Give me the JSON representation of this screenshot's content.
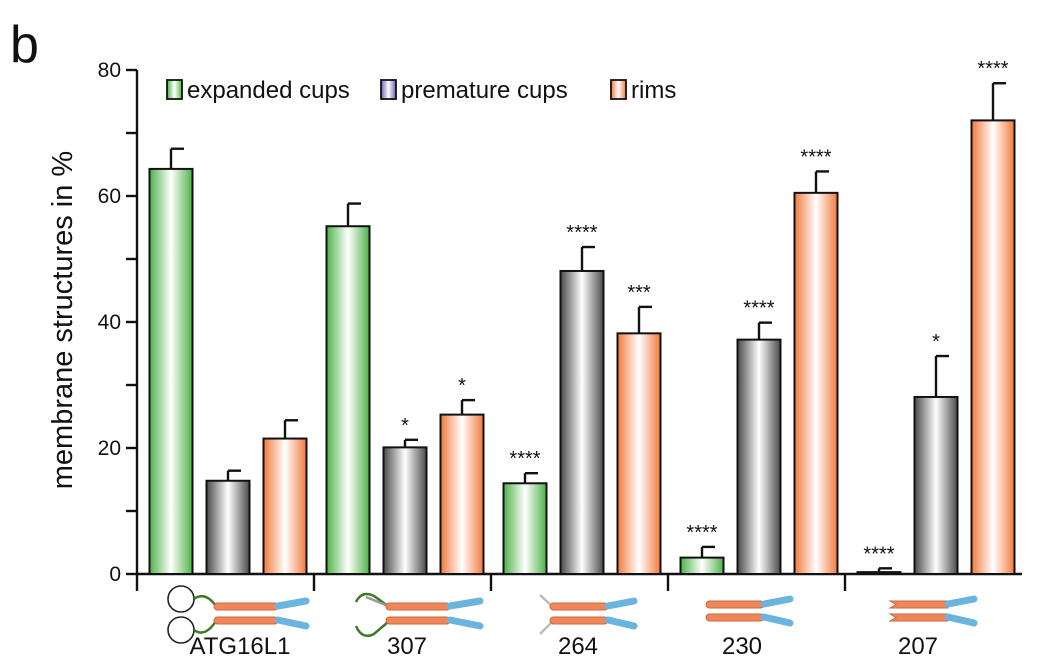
{
  "panel_label": "b",
  "chart_data": {
    "type": "bar",
    "title": "",
    "xlabel": "",
    "ylabel": "membrane structures in %",
    "ylim": [
      0,
      80
    ],
    "yticks": [
      0,
      20,
      40,
      60,
      80
    ],
    "grid": false,
    "legend_position": "top-left",
    "categories": [
      "ATG16L1",
      "307",
      "264",
      "230",
      "207"
    ],
    "series": [
      {
        "name": "expanded cups",
        "color": "#5cb85c",
        "values": [
          64.3,
          55.2,
          14.4,
          2.6,
          0.3
        ],
        "errors": [
          3.2,
          3.6,
          1.6,
          1.7,
          0.6
        ],
        "significance": [
          "",
          "",
          "****",
          "****",
          "****"
        ]
      },
      {
        "name": "premature cups",
        "color": "#7a6fb5",
        "bar_color": "#555555",
        "values": [
          14.8,
          20.1,
          48.1,
          37.2,
          28.1
        ],
        "errors": [
          1.6,
          1.2,
          3.8,
          2.7,
          6.5
        ],
        "significance": [
          "",
          "*",
          "****",
          "****",
          "*"
        ]
      },
      {
        "name": "rims",
        "color": "#f4874f",
        "values": [
          21.5,
          25.3,
          38.2,
          60.5,
          72.0
        ],
        "errors": [
          2.9,
          2.3,
          4.2,
          3.4,
          5.9
        ],
        "significance": [
          "",
          "*",
          "***",
          "****",
          "****"
        ]
      }
    ]
  }
}
